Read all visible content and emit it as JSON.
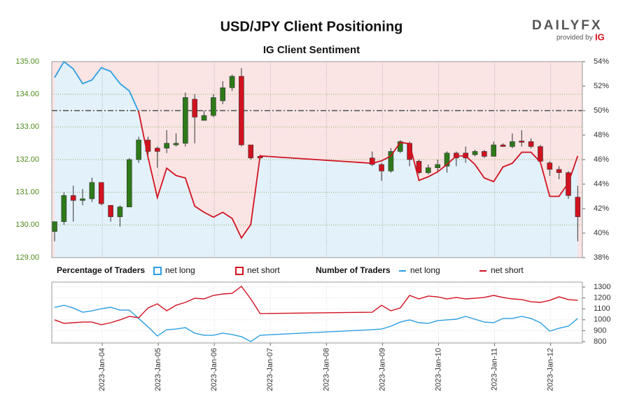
{
  "logo": {
    "name": "DAILYFX",
    "tagline": "provided by",
    "brand": "IG"
  },
  "chart_data": [
    {
      "type": "candlestick",
      "title": "USD/JPY Client Positioning",
      "subtitle": "IG Client Sentiment",
      "x": [
        0,
        1,
        2,
        3,
        4,
        5,
        6,
        7,
        8,
        9,
        10,
        11,
        12,
        13,
        14,
        15,
        16,
        17,
        18,
        19,
        20,
        21,
        22,
        34,
        35,
        36,
        37,
        38,
        39,
        40,
        41,
        42,
        43,
        44,
        45,
        46,
        47,
        48,
        49,
        50,
        51,
        52,
        53,
        54,
        55,
        56
      ],
      "xlim": [
        -0.3,
        56.5
      ],
      "open": [
        129.8,
        130.1,
        130.9,
        130.75,
        130.8,
        131.3,
        130.6,
        130.25,
        130.55,
        132.0,
        132.6,
        132.35,
        132.35,
        132.45,
        132.5,
        133.85,
        133.2,
        133.35,
        133.8,
        134.2,
        134.55,
        132.45,
        132.1,
        132.05,
        131.85,
        131.65,
        132.25,
        132.5,
        131.95,
        131.6,
        131.75,
        131.8,
        132.2,
        132.2,
        132.15,
        132.25,
        132.1,
        132.45,
        132.4,
        132.57,
        132.55,
        132.4,
        131.9,
        131.7,
        131.6,
        130.85
      ],
      "high": [
        130.1,
        131.0,
        131.2,
        131.1,
        131.45,
        131.3,
        130.6,
        130.6,
        132.05,
        132.7,
        132.7,
        132.4,
        132.9,
        132.8,
        134.05,
        134.0,
        133.5,
        134.0,
        134.4,
        134.6,
        134.8,
        132.45,
        132.15,
        132.25,
        131.9,
        132.35,
        132.6,
        132.55,
        132.0,
        131.85,
        132.0,
        132.25,
        132.25,
        132.4,
        132.3,
        132.3,
        132.55,
        132.5,
        132.8,
        132.9,
        132.65,
        132.45,
        131.95,
        131.8,
        131.65,
        131.2
      ],
      "low": [
        129.5,
        130.0,
        130.1,
        130.6,
        130.7,
        130.6,
        130.1,
        129.95,
        130.55,
        131.9,
        132.0,
        131.75,
        132.2,
        132.4,
        132.4,
        132.5,
        133.2,
        133.3,
        133.7,
        134.1,
        132.4,
        132.0,
        132.0,
        131.8,
        131.35,
        131.6,
        132.2,
        131.8,
        131.55,
        131.55,
        131.6,
        131.6,
        131.8,
        131.9,
        132.1,
        132.05,
        132.1,
        132.4,
        132.35,
        132.4,
        132.35,
        131.9,
        131.5,
        131.4,
        130.8,
        129.5
      ],
      "close": [
        130.1,
        130.9,
        130.75,
        130.8,
        131.3,
        130.65,
        130.25,
        130.55,
        132.0,
        132.6,
        132.25,
        132.25,
        132.5,
        132.5,
        133.9,
        133.3,
        133.35,
        133.9,
        134.2,
        134.55,
        132.45,
        132.05,
        132.05,
        131.85,
        131.65,
        132.25,
        132.55,
        132.0,
        131.6,
        131.75,
        131.85,
        132.2,
        132.05,
        132.05,
        132.25,
        132.1,
        132.45,
        132.4,
        132.55,
        132.53,
        132.4,
        131.95,
        131.7,
        131.6,
        130.9,
        130.25
      ],
      "up_color": "#2d7a19",
      "down_color": "#d1121f",
      "ylim": [
        129,
        135
      ],
      "yticks": [
        {
          "value": 129,
          "label": "129.00"
        },
        {
          "value": 130,
          "label": "130.00"
        },
        {
          "value": 131,
          "label": "131.00"
        },
        {
          "value": 132,
          "label": "132.00"
        },
        {
          "value": 133,
          "label": "133.00"
        },
        {
          "value": 134,
          "label": "134.00"
        },
        {
          "value": 135,
          "label": "135.00"
        }
      ],
      "y2lim": [
        38,
        54
      ],
      "y2ticks": [
        {
          "value": 38,
          "label": "38%"
        },
        {
          "value": 40,
          "label": "40%"
        },
        {
          "value": 42,
          "label": "42%"
        },
        {
          "value": 44,
          "label": "44%"
        },
        {
          "value": 46,
          "label": "46%"
        },
        {
          "value": 48,
          "label": "48%"
        },
        {
          "value": 50,
          "label": "50%"
        },
        {
          "value": 52,
          "label": "52%"
        },
        {
          "value": 54,
          "label": "54%"
        }
      ],
      "reference_line": 50,
      "series": [
        {
          "axis": "y2",
          "values": [
            52.7,
            54.0,
            53.4,
            52.2,
            52.5,
            53.5,
            53.2,
            52.2,
            51.6,
            49.9,
            46.2,
            42.9,
            45.3,
            44.7,
            44.5,
            42.2,
            41.7,
            41.3,
            41.7,
            41.2,
            39.6,
            40.7,
            46.3,
            45.7,
            45.9,
            46.3,
            47.4,
            47.3,
            44.3,
            44.6,
            45.0,
            45.6,
            46.3,
            46.3,
            45.6,
            44.5,
            44.2,
            45.4,
            45.7,
            46.6,
            46.6,
            45.8,
            43.0,
            43.0,
            44.1,
            46.3
          ]
        }
      ],
      "legend": {
        "title": "Percentage of Traders",
        "entries": [
          {
            "name": "net long",
            "color": "#2b9fe0",
            "fill": "#e3f1fb"
          },
          {
            "name": "net short",
            "color": "#d1121f",
            "fill": "#fbe4e4"
          }
        ]
      },
      "grid": true
    },
    {
      "type": "line",
      "legend_title": "Number of Traders",
      "ylim": [
        787,
        1345
      ],
      "yticks": [
        800,
        900,
        1000,
        1100,
        1200,
        1300
      ],
      "xticks": [
        {
          "value": 5.1,
          "label": "2023-Jan-04"
        },
        {
          "value": 11.1,
          "label": "2023-Jan-05"
        },
        {
          "value": 17.1,
          "label": "2023-Jan-06"
        },
        {
          "value": 23.1,
          "label": "2023-Jan-07"
        },
        {
          "value": 29.1,
          "label": "2023-Jan-08"
        },
        {
          "value": 35.1,
          "label": "2023-Jan-09"
        },
        {
          "value": 41.1,
          "label": "2023-Jan-10"
        },
        {
          "value": 47.1,
          "label": "2023-Jan-11"
        },
        {
          "value": 53.1,
          "label": "2023-Jan-12"
        }
      ],
      "series": [
        {
          "name": "net long",
          "color": "#2b9fe0",
          "values": [
            1114,
            1133,
            1108,
            1069,
            1082,
            1101,
            1114,
            1088,
            1088,
            1012,
            935,
            851,
            909,
            915,
            928,
            877,
            858,
            858,
            877,
            864,
            845,
            800,
            858,
            909,
            915,
            941,
            979,
            999,
            973,
            967,
            992,
            999,
            1005,
            1031,
            1005,
            979,
            973,
            1012,
            1012,
            1031,
            1012,
            973,
            896,
            922,
            941,
            1012
          ]
        },
        {
          "name": "net short",
          "color": "#d1121f",
          "values": [
            999,
            967,
            973,
            979,
            979,
            954,
            973,
            999,
            1031,
            1018,
            1108,
            1146,
            1082,
            1133,
            1159,
            1197,
            1191,
            1223,
            1236,
            1242,
            1306,
            1191,
            1057,
            1069,
            1133,
            1082,
            1108,
            1223,
            1191,
            1217,
            1210,
            1191,
            1204,
            1191,
            1197,
            1204,
            1223,
            1204,
            1191,
            1185,
            1165,
            1159,
            1178,
            1210,
            1185,
            1178
          ]
        }
      ],
      "grid": true
    }
  ]
}
